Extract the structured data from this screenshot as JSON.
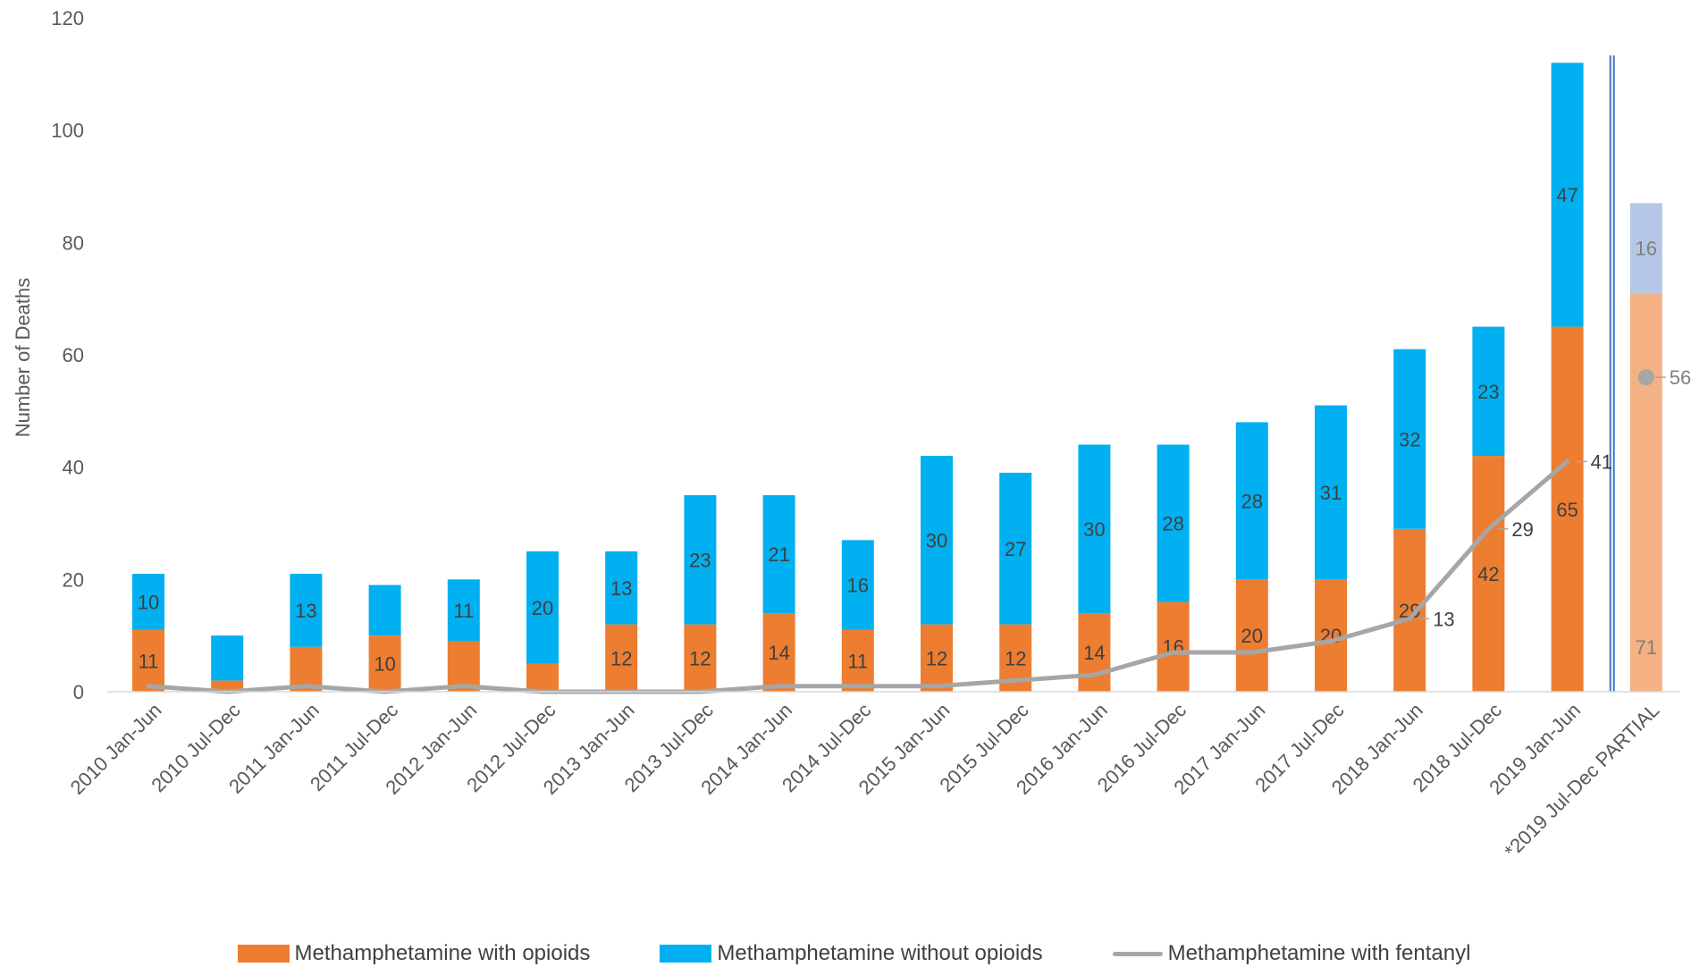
{
  "chart_data": {
    "type": "bar",
    "ylabel": "Number of Deaths",
    "ylim": [
      0,
      120
    ],
    "yticks": [
      0,
      20,
      40,
      60,
      80,
      100,
      120
    ],
    "grid": false,
    "legend_position": "bottom",
    "categories": [
      "2010 Jan-Jun",
      "2010 Jul-Dec",
      "2011 Jan-Jun",
      "2011 Jul-Dec",
      "2012 Jan-Jun",
      "2012 Jul-Dec",
      "2013 Jan-Jun",
      "2013 Jul-Dec",
      "2014 Jan-Jun",
      "2014 Jul-Dec",
      "2015 Jan-Jun",
      "2015 Jul-Dec",
      "2016 Jan-Jun",
      "2016 Jul-Dec",
      "2017 Jan-Jun",
      "2017 Jul-Dec",
      "2018 Jan-Jun",
      "2018 Jul-Dec",
      "2019 Jan-Jun",
      "*2019 Jul-Dec PARTIAL"
    ],
    "series": [
      {
        "name": "Methamphetamine with opioids",
        "kind": "bar-stacked",
        "color": "#ED7D31",
        "partial_color": "#F4B183",
        "values": [
          11,
          2,
          8,
          10,
          9,
          5,
          12,
          12,
          14,
          11,
          12,
          12,
          14,
          16,
          20,
          20,
          29,
          42,
          65,
          71
        ],
        "data_labels": [
          "11",
          "",
          "",
          "10",
          "",
          "",
          "12",
          "12",
          "14",
          "11",
          "12",
          "12",
          "14",
          "16",
          "20",
          "20",
          "29",
          "42",
          "65",
          "71"
        ]
      },
      {
        "name": "Methamphetamine without opioids",
        "kind": "bar-stacked",
        "color": "#00B0F0",
        "partial_color": "#B4C7E7",
        "values": [
          10,
          8,
          13,
          9,
          11,
          20,
          13,
          23,
          21,
          16,
          30,
          27,
          30,
          28,
          28,
          31,
          32,
          23,
          47,
          16
        ],
        "data_labels": [
          "10",
          "",
          "13",
          "",
          "11",
          "20",
          "13",
          "23",
          "21",
          "16",
          "30",
          "27",
          "30",
          "28",
          "28",
          "31",
          "32",
          "23",
          "47",
          "16"
        ]
      },
      {
        "name": "Methamphetamine with fentanyl",
        "kind": "line",
        "color": "#A6A6A6",
        "values": [
          1,
          0,
          1,
          0,
          1,
          0,
          0,
          0,
          1,
          1,
          1,
          2,
          3,
          7,
          7,
          9,
          13,
          29,
          41,
          56
        ],
        "data_labels": [
          "",
          "",
          "",
          "",
          "",
          "",
          "",
          "",
          "",
          "",
          "",
          "",
          "",
          "",
          "",
          "",
          "13",
          "29",
          "41",
          "56"
        ]
      }
    ],
    "partial_marker_color": "#4472C4"
  }
}
